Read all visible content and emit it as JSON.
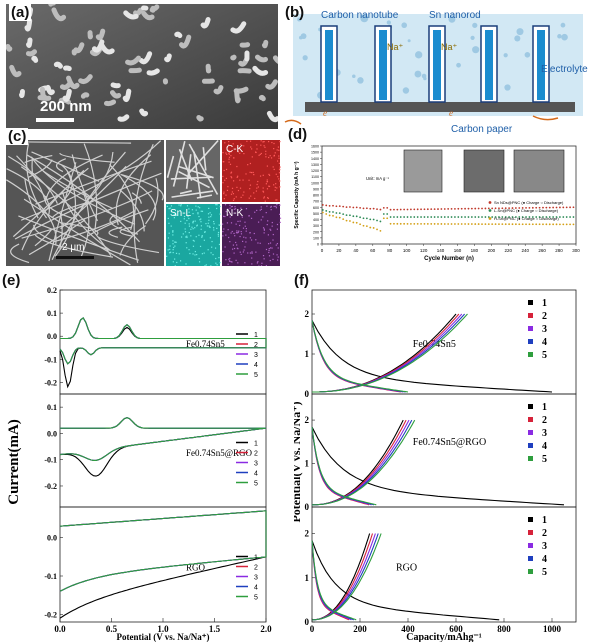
{
  "panel_labels": {
    "a": "(a)",
    "b": "(b)",
    "c": "(c)",
    "d": "(d)",
    "e": "(e)",
    "f": "(f)"
  },
  "a": {
    "scale_bar": "200 nm"
  },
  "b": {
    "labels": {
      "cnt": "Carbon nanotube",
      "sn": "Sn nanorod",
      "electrolyte": "Electrolyte",
      "paper": "Carbon paper",
      "na": "Na⁺",
      "e": "e"
    },
    "colors": {
      "bg": "#cfe6f3",
      "rod": "#1b8ccf",
      "paper": "#4a4a4a",
      "label": "#1f5fa8"
    }
  },
  "c": {
    "scale_bar": "2 μm",
    "maps": [
      "C-K",
      "Sn-L",
      "N-K"
    ],
    "map_colors": [
      "#b02020",
      "#1aa7a0",
      "#6a2a78"
    ]
  },
  "d": {
    "ylabel": "Specific Capacity (mA h g⁻¹)",
    "xlabel": "Cycle Number (n)",
    "unit": "Unit: mA g⁻¹",
    "yticks": [
      "0",
      "100",
      "200",
      "300",
      "400",
      "500",
      "600",
      "700",
      "800",
      "900",
      "1000",
      "1100",
      "1200",
      "1300",
      "1400",
      "1500",
      "1600"
    ],
    "xticks": [
      "0",
      "20",
      "40",
      "60",
      "80",
      "100",
      "120",
      "140",
      "160",
      "180",
      "200",
      "220",
      "240",
      "260",
      "280",
      "300"
    ],
    "legend": [
      {
        "label": "Sn NDs@PNC (● Charge ○ Discharge)",
        "color": "#c0392b"
      },
      {
        "label": "L-Sn@PNC (● Charge ○ Discharge)",
        "color": "#2e8b57"
      },
      {
        "label": "H-Sn@PNC (● Charge ○ Discharge)",
        "color": "#d4a017"
      }
    ]
  },
  "e": {
    "ylabel": "Current(mA)",
    "xlabel": "Potential (V vs. Na/Na⁺)",
    "xticks": [
      "0.0",
      "0.5",
      "1.0",
      "1.5",
      "2.0"
    ],
    "sub": [
      {
        "name": "Fe0.74Sn5",
        "yticks": [
          "0.2",
          "0.1",
          "0.0",
          "-0.1",
          "-0.2"
        ]
      },
      {
        "name": "Fe0.74Sn5@RGO",
        "yticks": [
          "0.1",
          "0.0",
          "-0.1",
          "-0.2"
        ]
      },
      {
        "name": "RGO",
        "yticks": [
          "0.0",
          "-0.1",
          "-0.2"
        ]
      }
    ],
    "legend": [
      "1",
      "2",
      "3",
      "4",
      "5"
    ],
    "colors": [
      "#000000",
      "#d6223a",
      "#8a2be2",
      "#1f3fbf",
      "#2e9e3e"
    ]
  },
  "f": {
    "ylabel": "Potential(V vs. Na/Na⁺)",
    "xlabel": "Capacity/mAhg⁻¹",
    "xticks": [
      "0",
      "200",
      "400",
      "600",
      "800",
      "1000"
    ],
    "yticks": [
      "0",
      "1",
      "2"
    ],
    "sub": [
      "Fe0.74Sn5",
      "Fe0.74Sn5@RGO",
      "RGO"
    ],
    "legend": [
      "1",
      "2",
      "3",
      "4",
      "5"
    ],
    "colors": [
      "#000000",
      "#d6223a",
      "#8a2be2",
      "#1f3fbf",
      "#2e9e3e"
    ]
  }
}
